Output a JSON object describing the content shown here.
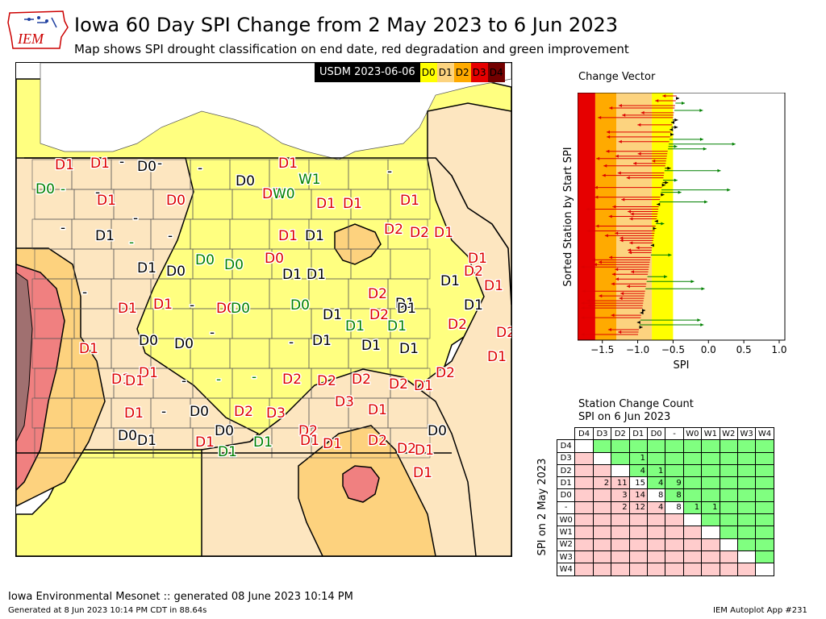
{
  "header": {
    "title": "Iowa 60 Day SPI Change from 2 May 2023 to 6 Jun 2023",
    "subtitle": "Map shows SPI drought classification on end date, red degradation and green improvement",
    "logo_text": "IEM"
  },
  "map": {
    "usdm_label": "USDM 2023-06-06",
    "legend": [
      {
        "label": "D0",
        "color": "#ffff00"
      },
      {
        "label": "D1",
        "color": "#fcd37f"
      },
      {
        "label": "D2",
        "color": "#ffaa00"
      },
      {
        "label": "D3",
        "color": "#e60000"
      },
      {
        "label": "D4",
        "color": "#730000"
      }
    ],
    "fill_colors": {
      "none": "#ffffff",
      "d0": "#ffff80",
      "d1": "#fde6c0",
      "d2": "#fdd27e",
      "d3": "#f08080",
      "d4": "#a07070"
    },
    "station_labels": [
      {
        "text": "D1",
        "color": "red"
      },
      {
        "text": "D1",
        "color": "red"
      },
      {
        "text": "-",
        "color": "black"
      },
      {
        "text": "D0",
        "color": "black"
      },
      {
        "text": "-",
        "color": "black"
      },
      {
        "text": "D0",
        "color": "green"
      },
      {
        "text": "-",
        "color": "green"
      },
      {
        "text": "-",
        "color": "black"
      },
      {
        "text": "D1",
        "color": "red"
      },
      {
        "text": "D0",
        "color": "red"
      },
      {
        "text": "-",
        "color": "black"
      },
      {
        "text": "D0",
        "color": "black"
      },
      {
        "text": "D1",
        "color": "red"
      },
      {
        "text": "D0",
        "color": "red"
      },
      {
        "text": "W0",
        "color": "green"
      },
      {
        "text": "W1",
        "color": "green"
      },
      {
        "text": "-",
        "color": "black"
      },
      {
        "text": "D1",
        "color": "red"
      },
      {
        "text": "D1",
        "color": "red"
      },
      {
        "text": "D1",
        "color": "red"
      },
      {
        "text": "-",
        "color": "black"
      },
      {
        "text": "-",
        "color": "black"
      },
      {
        "text": "D1",
        "color": "black"
      },
      {
        "text": "-",
        "color": "green"
      },
      {
        "text": "-",
        "color": "black"
      },
      {
        "text": "D1",
        "color": "red"
      },
      {
        "text": "D1",
        "color": "black"
      },
      {
        "text": "D2",
        "color": "red"
      },
      {
        "text": "D2",
        "color": "red"
      },
      {
        "text": "D1",
        "color": "red"
      },
      {
        "text": "D1",
        "color": "black"
      },
      {
        "text": "D0",
        "color": "black"
      },
      {
        "text": "D0",
        "color": "green"
      },
      {
        "text": "D0",
        "color": "green"
      },
      {
        "text": "D0",
        "color": "red"
      },
      {
        "text": "D1",
        "color": "black"
      },
      {
        "text": "D1",
        "color": "black"
      },
      {
        "text": "D2",
        "color": "red"
      },
      {
        "text": "D1",
        "color": "black"
      },
      {
        "text": "D1",
        "color": "red"
      },
      {
        "text": "D2",
        "color": "red"
      },
      {
        "text": "D1",
        "color": "black"
      },
      {
        "text": "D1",
        "color": "red"
      },
      {
        "text": "-",
        "color": "black"
      },
      {
        "text": "D1",
        "color": "red"
      },
      {
        "text": "D1",
        "color": "red"
      },
      {
        "text": "-",
        "color": "black"
      },
      {
        "text": "D0",
        "color": "red"
      },
      {
        "text": "D0",
        "color": "green"
      },
      {
        "text": "D0",
        "color": "green"
      },
      {
        "text": "D1",
        "color": "black"
      },
      {
        "text": "D2",
        "color": "red"
      },
      {
        "text": "D1",
        "color": "black"
      },
      {
        "text": "D1",
        "color": "black"
      },
      {
        "text": "D1",
        "color": "green"
      },
      {
        "text": "D1",
        "color": "green"
      },
      {
        "text": "D2",
        "color": "red"
      },
      {
        "text": "D2",
        "color": "red"
      },
      {
        "text": "D1",
        "color": "red"
      },
      {
        "text": "D0",
        "color": "black"
      },
      {
        "text": "D0",
        "color": "black"
      },
      {
        "text": "-",
        "color": "black"
      },
      {
        "text": "D1",
        "color": "black"
      },
      {
        "text": "-",
        "color": "black"
      },
      {
        "text": "D1",
        "color": "black"
      },
      {
        "text": "D1",
        "color": "black"
      },
      {
        "text": "D1",
        "color": "red"
      },
      {
        "text": "D1",
        "color": "red"
      },
      {
        "text": "D1",
        "color": "red"
      },
      {
        "text": "-",
        "color": "black"
      },
      {
        "text": "-",
        "color": "green"
      },
      {
        "text": "-",
        "color": "green"
      },
      {
        "text": "D2",
        "color": "red"
      },
      {
        "text": "D2",
        "color": "red"
      },
      {
        "text": "D2",
        "color": "red"
      },
      {
        "text": "D2",
        "color": "red"
      },
      {
        "text": "D2",
        "color": "red"
      },
      {
        "text": "D1",
        "color": "red"
      },
      {
        "text": "-",
        "color": "black"
      },
      {
        "text": "D1",
        "color": "red"
      },
      {
        "text": "D2",
        "color": "red"
      },
      {
        "text": "D3",
        "color": "red"
      },
      {
        "text": "D3",
        "color": "red"
      },
      {
        "text": "D2",
        "color": "red"
      },
      {
        "text": "D1",
        "color": "red"
      },
      {
        "text": "D0",
        "color": "black"
      },
      {
        "text": "D1",
        "color": "black"
      },
      {
        "text": "D0",
        "color": "black"
      },
      {
        "text": "D0",
        "color": "black"
      },
      {
        "text": "D1",
        "color": "red"
      },
      {
        "text": "D1",
        "color": "green"
      },
      {
        "text": "D1",
        "color": "green"
      },
      {
        "text": "D1",
        "color": "red"
      },
      {
        "text": "D2",
        "color": "red"
      },
      {
        "text": "D2",
        "color": "red"
      },
      {
        "text": "D1",
        "color": "red"
      },
      {
        "text": "D1",
        "color": "red"
      },
      {
        "text": "D1",
        "color": "red"
      },
      {
        "text": "D0",
        "color": "black"
      },
      {
        "text": "D1",
        "color": "red"
      }
    ]
  },
  "change_vector": {
    "title": "Change Vector",
    "ylabel": "Sorted Station by Start SPI",
    "xlabel": "SPI",
    "xticks": [
      "−1.5",
      "−1.0",
      "−0.5",
      "0.0",
      "0.5",
      "1.0"
    ]
  },
  "station_count": {
    "title_line1": "Station Change Count",
    "title_line2": "SPI on 6 Jun 2023",
    "ylabel": "SPI on 2 May 2023",
    "columns": [
      "D4",
      "D3",
      "D2",
      "D1",
      "D0",
      "-",
      "W0",
      "W1",
      "W2",
      "W3",
      "W4"
    ],
    "rows": [
      "D4",
      "D3",
      "D2",
      "D1",
      "D0",
      "-",
      "W0",
      "W1",
      "W2",
      "W3",
      "W4"
    ],
    "cells": [
      [
        "",
        "",
        "",
        "",
        "",
        "",
        "",
        "",
        "",
        "",
        ""
      ],
      [
        "",
        "",
        "",
        "1",
        "",
        "",
        "",
        "",
        "",
        "",
        ""
      ],
      [
        "",
        "",
        "",
        "4",
        "1",
        "",
        "",
        "",
        "",
        "",
        ""
      ],
      [
        "",
        "2",
        "11",
        "15",
        "4",
        "9",
        "",
        "",
        "",
        "",
        ""
      ],
      [
        "",
        "",
        "3",
        "14",
        "8",
        "8",
        "",
        "",
        "",
        "",
        ""
      ],
      [
        "",
        "",
        "2",
        "12",
        "4",
        "8",
        "1",
        "1",
        "",
        "",
        ""
      ],
      [
        "",
        "",
        "",
        "",
        "",
        "",
        "",
        "",
        "",
        "",
        ""
      ],
      [
        "",
        "",
        "",
        "",
        "",
        "",
        "",
        "",
        "",
        "",
        ""
      ],
      [
        "",
        "",
        "",
        "",
        "",
        "",
        "",
        "",
        "",
        "",
        ""
      ],
      [
        "",
        "",
        "",
        "",
        "",
        "",
        "",
        "",
        "",
        "",
        ""
      ],
      [
        "",
        "",
        "",
        "",
        "",
        "",
        "",
        "",
        "",
        "",
        ""
      ]
    ],
    "colors": {
      "diag": "#ffffff",
      "improve": "#80ff80",
      "degrade": "#ffcccc"
    }
  },
  "footer": {
    "main": "Iowa Environmental Mesonet :: generated 08 June 2023 10:14 PM",
    "generated": "Generated at 8 Jun 2023 10:14 PM CDT in 88.64s",
    "app": "IEM Autoplot App #231"
  }
}
